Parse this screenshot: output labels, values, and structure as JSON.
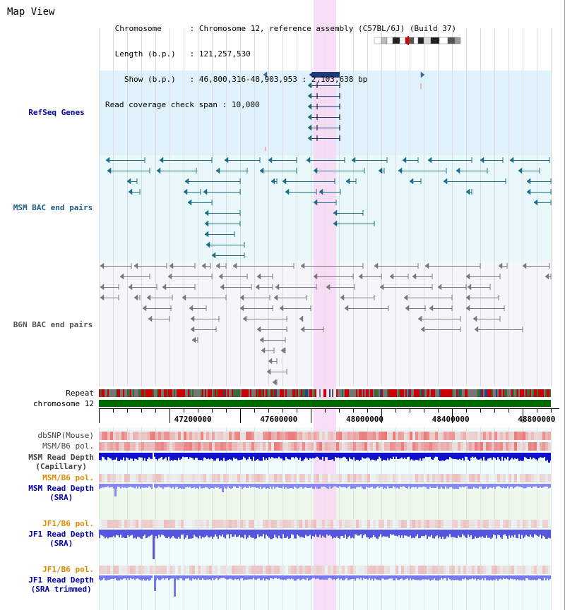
{
  "title": "Map View",
  "header": {
    "lines": [
      {
        "key": " Chromosome      ",
        "value": "Chromosome 12, reference assembly (C57BL/6J) (Build 37)"
      },
      {
        "key": " Length (b.p.)   ",
        "value": "121,257,530"
      },
      {
        "key": "   Show (b.p.)   ",
        "value": "46,800,316-48,903,953 : 2,103,638 bp"
      },
      {
        "key": "Read coverage check span",
        "value": "10,000"
      }
    ]
  },
  "tracks": {
    "refseq": "RefSeq Genes",
    "msm_bac": "MSM BAC end pairs",
    "b6n_bac": "B6N BAC end pairs",
    "repeat": "Repeat",
    "chromosome": "chromosome 12"
  },
  "axis": {
    "ticks": [
      {
        "label": "47200000",
        "value": 47200000
      },
      {
        "label": "47600000",
        "value": 47600000
      },
      {
        "label": "48000000",
        "value": 48000000
      },
      {
        "label": "48400000",
        "value": 48400000
      },
      {
        "label": "48800000",
        "value": 48800000
      }
    ]
  },
  "variation_tracks": [
    {
      "name": "dbSNP(Mouse)",
      "color": "#444444"
    },
    {
      "name": "MSM/B6 pol.",
      "color": "#444444"
    },
    {
      "name": "MSM Read Depth",
      "sub": "(Capillary)",
      "color": "#444444"
    },
    {
      "name": "MSM/B6 pol.",
      "color": "#e08a00"
    },
    {
      "name": "MSM Read Depth",
      "sub": "(SRA)",
      "color": "#0000aa"
    },
    {
      "name": "JF1/B6 pol.",
      "color": "#e08a00"
    },
    {
      "name": "JF1 Read Depth",
      "sub": "(SRA)",
      "color": "#0000aa"
    },
    {
      "name": "JF1/B6 pol.",
      "color": "#e08a00"
    },
    {
      "name": "JF1 Read Depth",
      "sub": "(SRA trimmed)",
      "color": "#0000aa"
    }
  ],
  "colors": {
    "refseq_bg": "#dff2fb",
    "msm_bg": "#e9f8fb",
    "b6n_bg": "#f4f6f9",
    "highlight": "#f7d8f2",
    "gene": "#1a3a7a",
    "msm_pair": "#1d6f8a",
    "b6n_pair": "#7a7a7a",
    "chromosome": "#006b00",
    "refseq_label": "#0000aa",
    "msm_label": "#1d5f8a",
    "b6n_label": "#555555"
  }
}
